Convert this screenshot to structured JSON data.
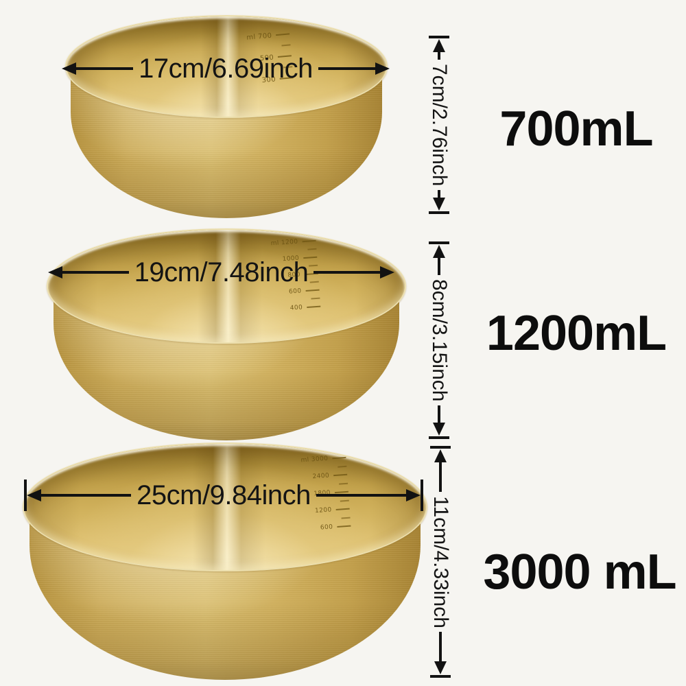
{
  "page": {
    "background_color": "#f6f5f1",
    "annotation_color": "#121212",
    "scale_text_color": "#6a5212"
  },
  "colors": {
    "gold_light": "#e9d28c",
    "gold_mid": "#cfae5b",
    "gold_dark": "#8f6f26"
  },
  "bowls": [
    {
      "name": "700ml-bowl",
      "volume_label": "700mL",
      "diameter_label": "17cm/6.69inch",
      "height_label": "7cm/2.76inch",
      "scale_marks": [
        "ml 700",
        "",
        "500",
        "",
        "300"
      ]
    },
    {
      "name": "1200ml-bowl",
      "volume_label": "1200mL",
      "diameter_label": "19cm/7.48inch",
      "height_label": "8cm/3.15inch",
      "scale_marks": [
        "ml 1200",
        "",
        "1000",
        "",
        "800",
        "",
        "600",
        "",
        "400"
      ]
    },
    {
      "name": "3000ml-bowl",
      "volume_label": "3000 mL",
      "diameter_label": "25cm/9.84inch",
      "height_label": "11cm/4.33inch",
      "scale_marks": [
        "ml 3000",
        "",
        "2400",
        "",
        "1800",
        "",
        "1200",
        "",
        "600"
      ]
    }
  ]
}
